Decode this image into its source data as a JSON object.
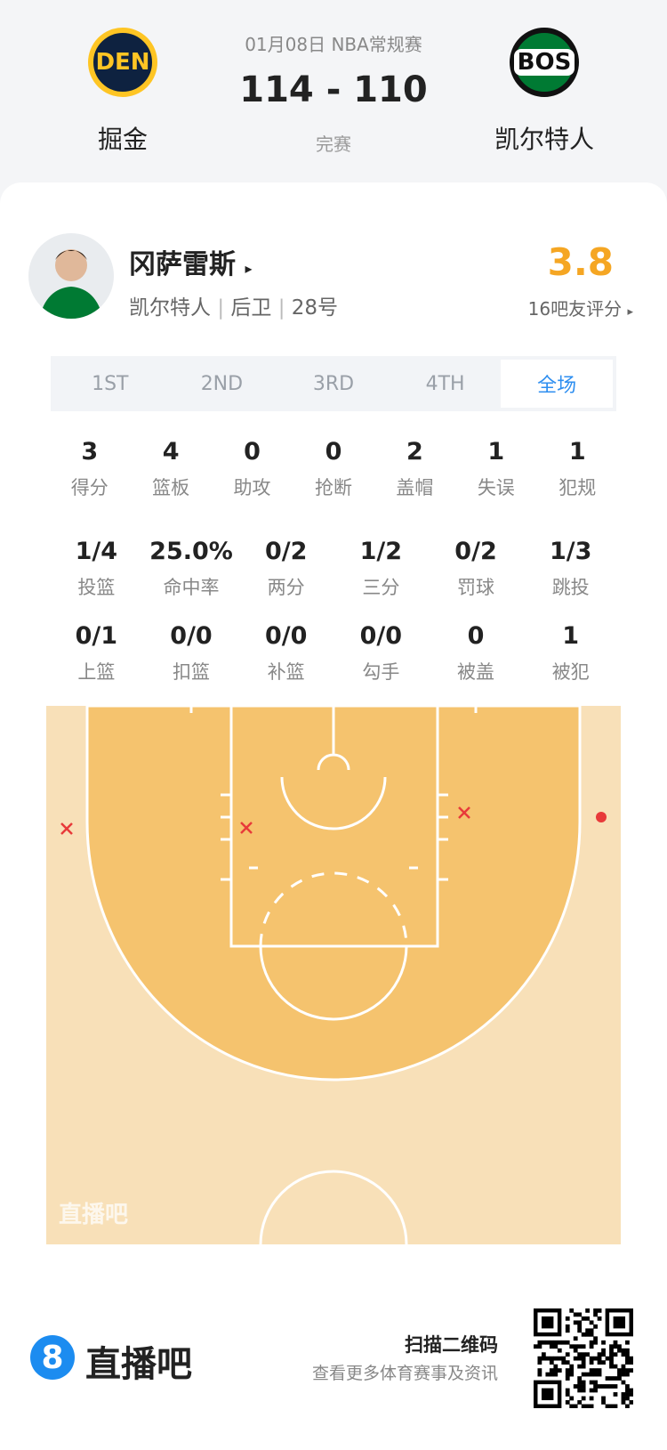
{
  "header": {
    "date": "01月08日 NBA常规赛",
    "score": "114 - 110",
    "status": "完赛",
    "home": {
      "abbr": "DEN",
      "name": "掘金"
    },
    "away": {
      "abbr": "BOS",
      "name": "凯尔特人"
    }
  },
  "player": {
    "name": "冈萨雷斯",
    "team": "凯尔特人",
    "position": "后卫",
    "number": "28号",
    "rating": "3.8",
    "rating_label": "16吧友评分"
  },
  "tabs": {
    "items": [
      "1ST",
      "2ND",
      "3RD",
      "4TH",
      "全场"
    ],
    "active": 4
  },
  "stats": [
    [
      {
        "value": "3",
        "label": "得分"
      },
      {
        "value": "4",
        "label": "篮板"
      },
      {
        "value": "0",
        "label": "助攻"
      },
      {
        "value": "0",
        "label": "抢断"
      },
      {
        "value": "2",
        "label": "盖帽"
      },
      {
        "value": "1",
        "label": "失误"
      },
      {
        "value": "1",
        "label": "犯规"
      }
    ],
    [
      {
        "value": "1/4",
        "label": "投篮"
      },
      {
        "value": "25.0%",
        "label": "命中率"
      },
      {
        "value": "0/2",
        "label": "两分"
      },
      {
        "value": "1/2",
        "label": "三分"
      },
      {
        "value": "0/2",
        "label": "罚球"
      },
      {
        "value": "1/3",
        "label": "跳投"
      }
    ],
    [
      {
        "value": "0/1",
        "label": "上篮"
      },
      {
        "value": "0/0",
        "label": "扣篮"
      },
      {
        "value": "0/0",
        "label": "补篮"
      },
      {
        "value": "0/0",
        "label": "勾手"
      },
      {
        "value": "0",
        "label": "被盖"
      },
      {
        "value": "1",
        "label": "被犯"
      }
    ]
  ],
  "court": {
    "watermark": "直播吧"
  },
  "footer": {
    "logo": "8",
    "brand": "直播吧",
    "scan": "扫描二维码",
    "subtext": "查看更多体育赛事及资讯"
  }
}
